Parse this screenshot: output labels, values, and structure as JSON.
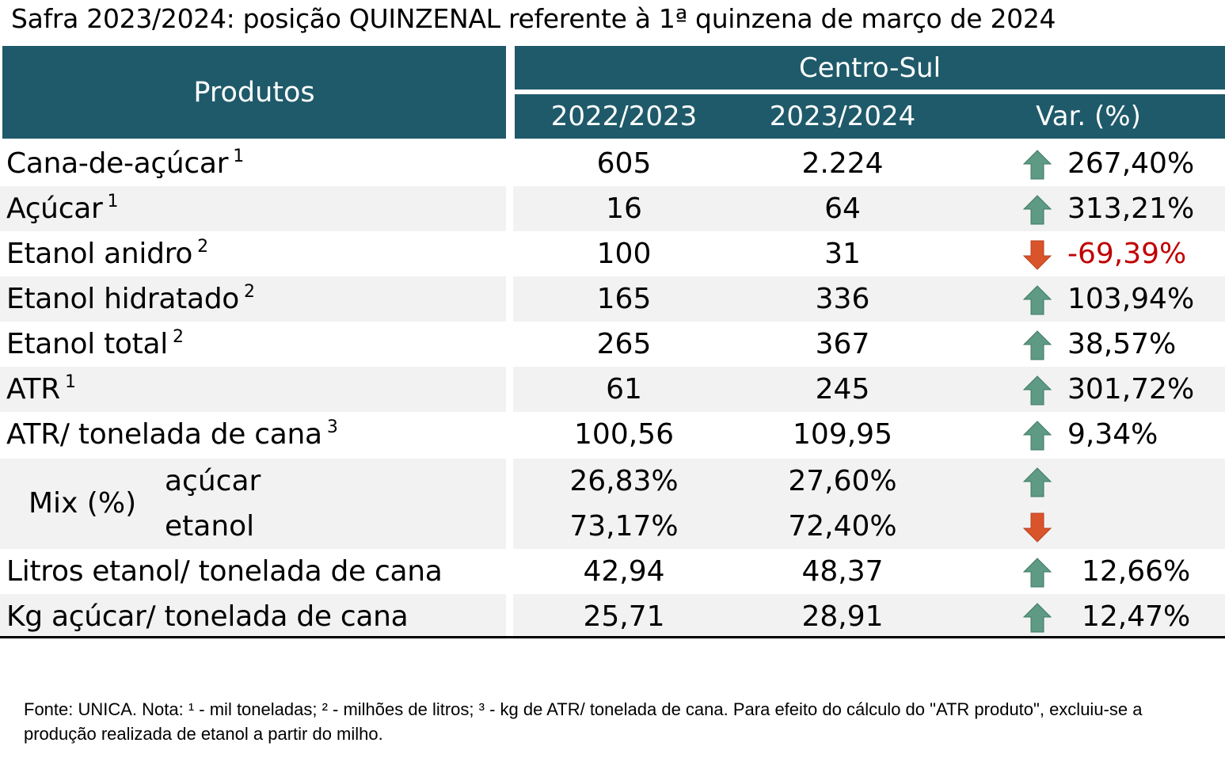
{
  "title": "Safra 2023/2024: posição QUINZENAL referente à 1ª quinzena de março de 2024",
  "header": {
    "products": "Produtos",
    "region": "Centro-Sul",
    "col1": "2022/2023",
    "col2": "2023/2024",
    "col3": "Var. (%)"
  },
  "rows": [
    {
      "label": "Cana-de-açúcar",
      "sup": "1",
      "v1": "605",
      "v2": "2.224",
      "dir": "up",
      "var": "267,40%"
    },
    {
      "label": "Açúcar",
      "sup": "1",
      "v1": "16",
      "v2": "64",
      "dir": "up",
      "var": "313,21%"
    },
    {
      "label": "Etanol anidro",
      "sup": "2",
      "v1": "100",
      "v2": "31",
      "dir": "down",
      "var": "-69,39%"
    },
    {
      "label": "Etanol hidratado",
      "sup": "2",
      "v1": "165",
      "v2": "336",
      "dir": "up",
      "var": "103,94%"
    },
    {
      "label": "Etanol total",
      "sup": "2",
      "v1": "265",
      "v2": "367",
      "dir": "up",
      "var": "38,57%"
    },
    {
      "label": "ATR",
      "sup": "1",
      "v1": "61",
      "v2": "245",
      "dir": "up",
      "var": "301,72%"
    },
    {
      "label": "ATR/ tonelada de cana",
      "sup": "3",
      "v1": "100,56",
      "v2": "109,95",
      "dir": "up",
      "var": "9,34%"
    }
  ],
  "mix": {
    "label": "Mix (%)",
    "sugar": {
      "label": "açúcar",
      "v1": "26,83%",
      "v2": "27,60%",
      "dir": "up"
    },
    "ethanol": {
      "label": "etanol",
      "v1": "73,17%",
      "v2": "72,40%",
      "dir": "down"
    }
  },
  "bottom_rows": [
    {
      "label": "Litros etanol/ tonelada de cana",
      "v1": "42,94",
      "v2": "48,37",
      "dir": "up",
      "var": "12,66%"
    },
    {
      "label": "Kg açúcar/ tonelada de cana",
      "v1": "25,71",
      "v2": "28,91",
      "dir": "up",
      "var": "12,47%"
    }
  ],
  "footnote": "Fonte: UNICA. Nota: ¹ - mil toneladas; ² - milhões de litros; ³ - kg de ATR/ tonelada de cana. Para efeito do cálculo do \"ATR produto\", excluiu-se a produção realizada de etanol a partir do milho.",
  "colors": {
    "header_bg": "#1f5a6a",
    "arrow_up": "#5e9a84",
    "arrow_down": "#d9532b",
    "negative_text": "#c00000",
    "shade": "#f2f2f2"
  },
  "icons": {
    "up": "arrow-up-icon",
    "down": "arrow-down-icon"
  }
}
